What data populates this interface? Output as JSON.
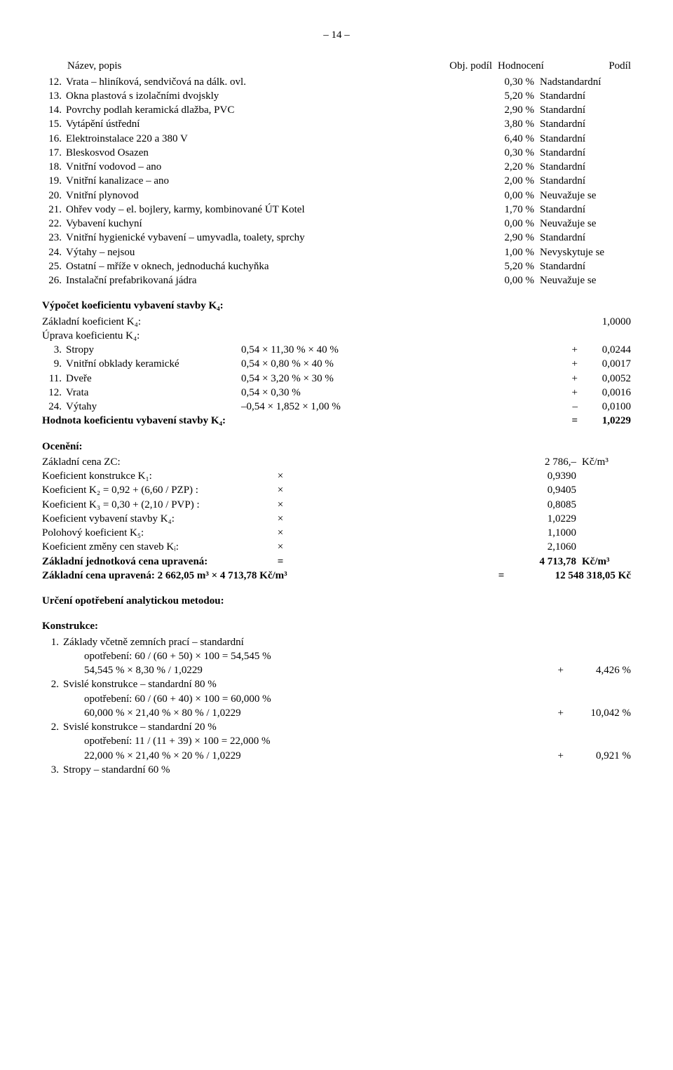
{
  "page_number": "– 14 –",
  "header": {
    "name": "Název, popis",
    "podil": "Obj. podíl",
    "hodnoceni": "Hodnocení",
    "posledni": "Podíl"
  },
  "items": [
    {
      "n": "12.",
      "text": "Vrata – hliníková, sendvičová na dálk. ovl.",
      "pct": "0,30 %",
      "eval": "Nadstandardní"
    },
    {
      "n": "13.",
      "text": "Okna plastová s izolačními dvojskly",
      "pct": "5,20 %",
      "eval": "Standardní"
    },
    {
      "n": "14.",
      "text": "Povrchy podlah keramická dlažba, PVC",
      "pct": "2,90 %",
      "eval": "Standardní"
    },
    {
      "n": "15.",
      "text": "Vytápění ústřední",
      "pct": "3,80 %",
      "eval": "Standardní"
    },
    {
      "n": "16.",
      "text": "Elektroinstalace 220 a 380 V",
      "pct": "6,40 %",
      "eval": "Standardní"
    },
    {
      "n": "17.",
      "text": "Bleskosvod Osazen",
      "pct": "0,30 %",
      "eval": "Standardní"
    },
    {
      "n": "18.",
      "text": "Vnitřní vodovod – ano",
      "pct": "2,20 %",
      "eval": "Standardní"
    },
    {
      "n": "19.",
      "text": "Vnitřní kanalizace – ano",
      "pct": "2,00 %",
      "eval": "Standardní"
    },
    {
      "n": "20.",
      "text": "Vnitřní plynovod",
      "pct": "0,00 %",
      "eval": "Neuvažuje se"
    },
    {
      "n": "21.",
      "text": "Ohřev vody – el. bojlery, karmy, kombinované ÚT Kotel",
      "pct": "1,70 %",
      "eval": "Standardní"
    },
    {
      "n": "22.",
      "text": "Vybavení kuchyní",
      "pct": "0,00 %",
      "eval": "Neuvažuje se"
    },
    {
      "n": "23.",
      "text": "Vnitřní hygienické vybavení – umyvadla, toalety, sprchy",
      "pct": "2,90 %",
      "eval": "Standardní"
    },
    {
      "n": "24.",
      "text": "Výtahy – nejsou",
      "pct": "1,00 %",
      "eval": "Nevyskytuje se"
    },
    {
      "n": "25.",
      "text": "Ostatní – mříže v oknech, jednoduchá kuchyňka",
      "pct": "5,20 %",
      "eval": "Standardní"
    },
    {
      "n": "26.",
      "text": "Instalační prefabrikovaná jádra",
      "pct": "0,00 %",
      "eval": "Neuvažuje se"
    }
  ],
  "k4_title": "Výpočet koeficientu vybavení stavby K₄:",
  "k4_base_label": "Základní koeficient K₄:",
  "k4_base_val": "1,0000",
  "k4_adj_label": "Úprava koeficientu K₄:",
  "k4_adjustments": [
    {
      "n": "3.",
      "name": "Stropy",
      "calc": "0,54 × 11,30 % × 40 %",
      "sign": "+",
      "val": "0,0244"
    },
    {
      "n": "9.",
      "name": "Vnitřní obklady keramické",
      "calc": "0,54 × 0,80 % × 40 %",
      "sign": "+",
      "val": "0,0017"
    },
    {
      "n": "11.",
      "name": "Dveře",
      "calc": "0,54 × 3,20 % × 30 %",
      "sign": "+",
      "val": "0,0052"
    },
    {
      "n": "12.",
      "name": "Vrata",
      "calc": "0,54 × 0,30 %",
      "sign": "+",
      "val": "0,0016"
    },
    {
      "n": "24.",
      "name": "Výtahy",
      "calc": "–0,54 × 1,852 × 1,00 %",
      "sign": "–",
      "val": "0,0100"
    }
  ],
  "k4_final_label": "Hodnota koeficientu vybavení stavby K₄:",
  "k4_final_sign": "=",
  "k4_final_val": "1,0229",
  "ocen_title": "Ocenění:",
  "ocen_rows": [
    {
      "label": "Základní cena ZC:",
      "op": "",
      "val": "2 786,–",
      "unit": "Kč/m³"
    },
    {
      "label": "Koeficient konstrukce K₁:",
      "op": "×",
      "val": "0,9390",
      "unit": ""
    },
    {
      "label": "Koeficient K₂ = 0,92 + (6,60 / PZP) :",
      "op": "×",
      "val": "0,9405",
      "unit": ""
    },
    {
      "label": "Koeficient K₃ = 0,30 + (2,10 / PVP) :",
      "op": "×",
      "val": "0,8085",
      "unit": ""
    },
    {
      "label": "Koeficient vybavení stavby K₄:",
      "op": "×",
      "val": "1,0229",
      "unit": ""
    },
    {
      "label": "Polohový koeficient K₅:",
      "op": "×",
      "val": "1,1000",
      "unit": ""
    },
    {
      "label": "Koeficient změny cen staveb Kᵢ:",
      "op": "×",
      "val": "2,1060",
      "unit": ""
    }
  ],
  "zjcu_label": "Základní jednotková cena upravená:",
  "zjcu_op": "=",
  "zjcu_val": "4 713,78",
  "zjcu_unit": "Kč/m³",
  "zcu_label": "Základní cena upravená: 2 662,05 m³ × 4 713,78 Kč/m³",
  "zcu_eq": "=",
  "zcu_val": "12 548 318,05 Kč",
  "wear_title": "Určení opotřebení analytickou metodou:",
  "konstrukce_title": "Konstrukce:",
  "wear_items": [
    {
      "n": "1.",
      "line1": "Základy včetně zemních prací – standardní",
      "line2": "opotřebení: 60 / (60 + 50) × 100 = 54,545 %",
      "line3": "54,545 % × 8,30 % / 1,0229",
      "sign": "+",
      "val": "4,426 %"
    },
    {
      "n": "2.",
      "line1": "Svislé konstrukce – standardní 80 %",
      "line2": "opotřebení: 60 / (60 + 40) × 100 = 60,000 %",
      "line3": "60,000 % × 21,40 % × 80 % / 1,0229",
      "sign": "+",
      "val": "10,042 %"
    },
    {
      "n": "2.",
      "line1": "Svislé konstrukce – standardní 20 %",
      "line2": "opotřebení: 11 / (11 + 39) × 100 = 22,000 %",
      "line3": "22,000 % × 21,40 % × 20 % / 1,0229",
      "sign": "+",
      "val": "0,921 %"
    },
    {
      "n": "3.",
      "line1": "Stropy – standardní 60 %",
      "line2": "",
      "line3": "",
      "sign": "",
      "val": ""
    }
  ]
}
